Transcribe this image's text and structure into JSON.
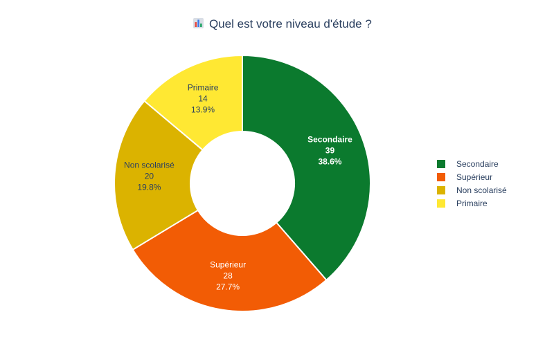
{
  "chart_data": {
    "type": "pie",
    "hole": true,
    "title_icon": "bar-chart-emoji",
    "title": "Quel est votre niveau d'étude ?",
    "slices": [
      {
        "label": "Secondaire",
        "value": 39,
        "percent": "38.6%",
        "color": "#0b7a2e",
        "text_color": "#ffffff",
        "bold": true
      },
      {
        "label": "Supérieur",
        "value": 28,
        "percent": "27.7%",
        "color": "#f25c05",
        "text_color": "#ffffff",
        "bold": false
      },
      {
        "label": "Non scolarisé",
        "value": 20,
        "percent": "19.8%",
        "color": "#dbb300",
        "text_color": "#2a3f5f",
        "bold": false
      },
      {
        "label": "Primaire",
        "value": 14,
        "percent": "13.9%",
        "color": "#ffe833",
        "text_color": "#2a3f5f",
        "bold": false
      }
    ],
    "legend_position": "right"
  }
}
